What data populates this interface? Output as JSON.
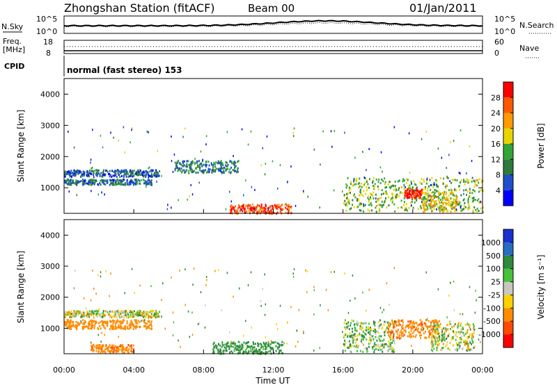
{
  "header": {
    "station": "Zhongshan Station (fitACF)",
    "beam": "Beam 00",
    "date": "01/Jan/2011"
  },
  "top_panels": {
    "nsky_label": "N.Sky",
    "nsearch_label": "N.Search",
    "nsky_ticks": [
      "10^5",
      "10^0"
    ],
    "nsearch_ticks": [
      "10^5",
      "10^0"
    ],
    "freq_label_1": "Freq.",
    "freq_label_2": "[MHz]",
    "freq_ticks": [
      "18",
      "8"
    ],
    "nave_label": "Nave",
    "nave_ticks": [
      "60",
      "0"
    ],
    "cpid_label": "CPID",
    "cpid_text": "normal (fast stereo) 153"
  },
  "axes": {
    "x_label": "Time UT",
    "x_ticks": [
      "00:00",
      "04:00",
      "08:00",
      "12:00",
      "16:00",
      "20:00",
      "00:00"
    ],
    "y_label": "Slant Range [km]",
    "y_ticks": [
      "4000",
      "3000",
      "2000",
      "1000"
    ]
  },
  "power_scale": {
    "label": "Power [dB]",
    "ticks": [
      "28",
      "24",
      "20",
      "16",
      "12",
      "8",
      "4"
    ],
    "colors": [
      "#0000ff",
      "#1e4fc8",
      "#2f7b3c",
      "#32a53a",
      "#e8d400",
      "#ff9a00",
      "#ff5a00",
      "#ff0000"
    ]
  },
  "velocity_scale": {
    "label": "Velocity [m s⁻¹]",
    "ticks": [
      "1000",
      "500",
      "100",
      "25",
      "-25",
      "-100",
      "-500",
      "-1000"
    ],
    "colors": [
      "#1a2fd0",
      "#2a6cc0",
      "#2e8a3c",
      "#46c23a",
      "#c8c8c0",
      "#ffd000",
      "#ff8c00",
      "#ff4a00",
      "#ff0000"
    ]
  },
  "chart_data": [
    {
      "type": "heatmap",
      "title": "Power",
      "x_range": [
        "00:00",
        "24:00"
      ],
      "ylim": [
        180,
        4500
      ],
      "ylabel": "Slant Range [km]",
      "xlabel": "Time UT",
      "colorbar": "Power [dB]",
      "colorbar_range": [
        0,
        30
      ],
      "bands": [
        {
          "t0": 0.0,
          "t1": 5.5,
          "r0": 1380,
          "r1": 1600,
          "value": 7
        },
        {
          "t0": 0.0,
          "t1": 5.0,
          "r0": 1120,
          "r1": 1300,
          "value": 8
        },
        {
          "t0": 6.3,
          "t1": 10.0,
          "r0": 1500,
          "r1": 1900,
          "value": 9
        },
        {
          "t0": 9.5,
          "t1": 13.0,
          "r0": 200,
          "r1": 500,
          "value": 26
        },
        {
          "t0": 16.0,
          "t1": 24.0,
          "r0": 250,
          "r1": 1350,
          "value": 14
        },
        {
          "t0": 19.5,
          "t1": 20.5,
          "r0": 700,
          "r1": 1000,
          "value": 28
        },
        {
          "t0": 20.5,
          "t1": 22.5,
          "r0": 250,
          "r1": 900,
          "value": 18
        }
      ]
    },
    {
      "type": "heatmap",
      "title": "Velocity",
      "x_range": [
        "00:00",
        "24:00"
      ],
      "ylim": [
        180,
        4500
      ],
      "ylabel": "Slant Range [km]",
      "xlabel": "Time UT",
      "colorbar": "Velocity [m s⁻¹]",
      "colorbar_range": [
        -1000,
        1000
      ],
      "bands": [
        {
          "t0": 0.0,
          "t1": 5.5,
          "r0": 1380,
          "r1": 1600,
          "value": 0
        },
        {
          "t0": 0.0,
          "t1": 5.0,
          "r0": 1000,
          "r1": 1300,
          "value": -300
        },
        {
          "t0": 1.5,
          "t1": 4.0,
          "r0": 250,
          "r1": 500,
          "value": -400
        },
        {
          "t0": 8.5,
          "t1": 12.5,
          "r0": 200,
          "r1": 600,
          "value": 200
        },
        {
          "t0": 16.0,
          "t1": 19.0,
          "r0": 250,
          "r1": 1300,
          "value": 60
        },
        {
          "t0": 18.5,
          "t1": 21.5,
          "r0": 700,
          "r1": 1300,
          "value": -400
        },
        {
          "t0": 21.0,
          "t1": 23.5,
          "r0": 300,
          "r1": 1200,
          "value": 0
        }
      ]
    }
  ]
}
